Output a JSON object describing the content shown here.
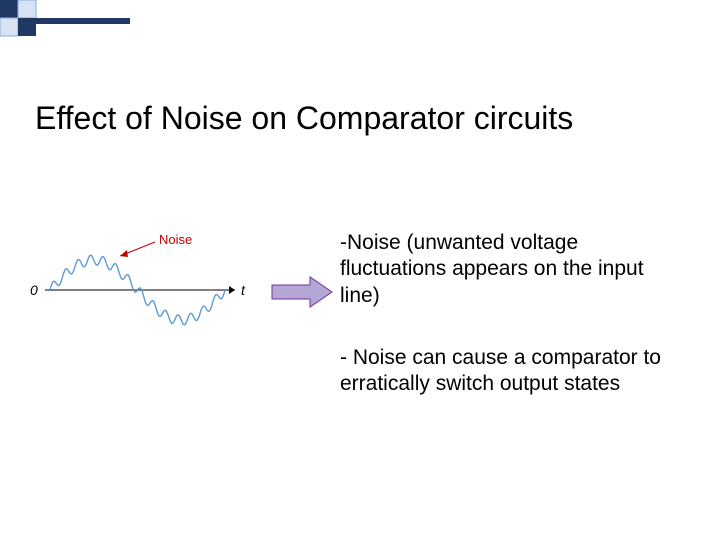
{
  "title": "Effect of Noise on Comparator circuits",
  "bullet1": "-Noise (unwanted voltage fluctuations appears on the input line)",
  "bullet2": "- Noise can cause a comparator to erratically switch output states",
  "diagram": {
    "axis_label_y": "0",
    "axis_label_x": "t",
    "noise_label": "Noise",
    "wave_color": "#5b9bd5",
    "noise_text_color": "#c00000",
    "arrow_line_color": "#c00000",
    "axis_color": "#000000"
  },
  "block_arrow": {
    "fill": "#b4a7d6",
    "stroke": "#7030a0"
  },
  "corner": {
    "fill_dark": "#1f3864",
    "fill_light": "#d9e2f3",
    "stroke": "#8faadc"
  }
}
